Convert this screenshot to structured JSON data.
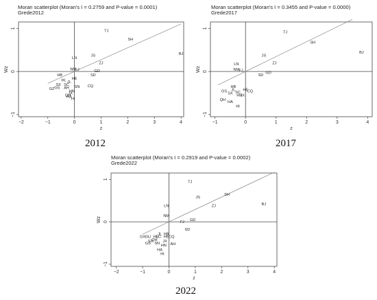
{
  "chart_data": [
    {
      "type": "scatter",
      "title": "Moran scatterplot (Moran's I = 0.2759 and P-value = 0.0001)",
      "subtitle": "Grede2012",
      "xlabel": "z",
      "ylabel": "Wz",
      "caption": "2012",
      "xlim": [
        -2.1,
        4.1
      ],
      "ylim": [
        -1.05,
        1.15
      ],
      "xticks": [
        -2,
        -1,
        0,
        1,
        2,
        3,
        4
      ],
      "yticks": [
        -1,
        0,
        1
      ],
      "fit_line": {
        "slope": 0.2759,
        "x": [
          -1.0,
          4.0
        ]
      },
      "points": [
        {
          "label": "TJ",
          "x": 1.2,
          "y": 0.95
        },
        {
          "label": "SH",
          "x": 2.1,
          "y": 0.75
        },
        {
          "label": "BJ",
          "x": 4.0,
          "y": 0.42
        },
        {
          "label": "JS",
          "x": 0.7,
          "y": 0.38
        },
        {
          "label": "LN",
          "x": 0.0,
          "y": 0.32
        },
        {
          "label": "ZJ",
          "x": 1.0,
          "y": 0.2
        },
        {
          "label": "NM",
          "x": -0.05,
          "y": 0.06
        },
        {
          "label": "FJ",
          "x": 0.1,
          "y": 0.05
        },
        {
          "label": "GD",
          "x": 0.85,
          "y": 0.02
        },
        {
          "label": "SD",
          "x": 0.7,
          "y": -0.08
        },
        {
          "label": "HB",
          "x": -0.55,
          "y": -0.08
        },
        {
          "label": "HE",
          "x": 0.0,
          "y": -0.16
        },
        {
          "label": "HL",
          "x": -0.4,
          "y": -0.2
        },
        {
          "label": "JL",
          "x": -0.2,
          "y": -0.24
        },
        {
          "label": "SC",
          "x": -0.3,
          "y": -0.3
        },
        {
          "label": "SX",
          "x": -0.6,
          "y": -0.3
        },
        {
          "label": "CQ",
          "x": 0.6,
          "y": -0.33
        },
        {
          "label": "SN",
          "x": 0.1,
          "y": -0.35
        },
        {
          "label": "AH",
          "x": -0.3,
          "y": -0.37
        },
        {
          "label": "GS",
          "x": -0.65,
          "y": -0.37
        },
        {
          "label": "GZ",
          "x": -0.85,
          "y": -0.4
        },
        {
          "label": "HN",
          "x": -0.1,
          "y": -0.45
        },
        {
          "label": "JX",
          "x": -0.15,
          "y": -0.5
        },
        {
          "label": "QH",
          "x": -0.25,
          "y": -0.55
        },
        {
          "label": "HA",
          "x": -0.2,
          "y": -0.58
        },
        {
          "label": "HI",
          "x": -0.05,
          "y": -0.63
        }
      ]
    },
    {
      "type": "scatter",
      "title": "Moran scatterplot (Moran's I = 0.3455 and P-value = 0.0000)",
      "subtitle": "Grede2017",
      "xlabel": "z",
      "ylabel": "Wz",
      "caption": "2017",
      "xlim": [
        -1.15,
        4.15
      ],
      "ylim": [
        -1.05,
        1.15
      ],
      "xticks": [
        -1,
        0,
        1,
        2,
        3,
        4
      ],
      "yticks": [
        -1,
        0,
        1
      ],
      "fit_line": {
        "slope": 0.3455,
        "x": [
          -0.9,
          3.5
        ]
      },
      "points": [
        {
          "label": "TJ",
          "x": 1.3,
          "y": 0.92
        },
        {
          "label": "SH",
          "x": 2.2,
          "y": 0.68
        },
        {
          "label": "BJ",
          "x": 3.8,
          "y": 0.45
        },
        {
          "label": "JS",
          "x": 0.6,
          "y": 0.38
        },
        {
          "label": "ZJ",
          "x": 0.95,
          "y": 0.2
        },
        {
          "label": "LN",
          "x": -0.3,
          "y": 0.18
        },
        {
          "label": "NM",
          "x": -0.3,
          "y": 0.05
        },
        {
          "label": "FJ",
          "x": -0.15,
          "y": 0.03
        },
        {
          "label": "GD",
          "x": 0.75,
          "y": -0.02
        },
        {
          "label": "SD",
          "x": 0.5,
          "y": -0.08
        },
        {
          "label": "HB",
          "x": -0.4,
          "y": -0.35
        },
        {
          "label": "HE",
          "x": 0.0,
          "y": -0.42
        },
        {
          "label": "CQ",
          "x": 0.15,
          "y": -0.45
        },
        {
          "label": "JL",
          "x": -0.4,
          "y": -0.42
        },
        {
          "label": "GS",
          "x": -0.7,
          "y": -0.45
        },
        {
          "label": "SX",
          "x": -0.5,
          "y": -0.5
        },
        {
          "label": "SC",
          "x": -0.25,
          "y": -0.48
        },
        {
          "label": "HN",
          "x": -0.2,
          "y": -0.55
        },
        {
          "label": "JX",
          "x": -0.1,
          "y": -0.55
        },
        {
          "label": "QH",
          "x": -0.75,
          "y": -0.65
        },
        {
          "label": "HA",
          "x": -0.5,
          "y": -0.7
        },
        {
          "label": "HI",
          "x": -0.25,
          "y": -0.8
        }
      ]
    },
    {
      "type": "scatter",
      "title": "Moran scatterplot (Moran's I = 0.2919 and P-value = 0.0002)",
      "subtitle": "Grede2022",
      "xlabel": "z",
      "ylabel": "Wz",
      "caption": "2022",
      "xlim": [
        -2.2,
        4.1
      ],
      "ylim": [
        -1.05,
        1.15
      ],
      "xticks": [
        -2,
        -1,
        0,
        1,
        2,
        3,
        4
      ],
      "yticks": [
        -1,
        0,
        1
      ],
      "fit_line": {
        "slope": 0.2919,
        "x": [
          -1.0,
          4.0
        ]
      },
      "points": [
        {
          "label": "TJ",
          "x": 0.8,
          "y": 0.95
        },
        {
          "label": "SH",
          "x": 2.2,
          "y": 0.65
        },
        {
          "label": "JS",
          "x": 1.1,
          "y": 0.58
        },
        {
          "label": "BJ",
          "x": 3.6,
          "y": 0.42
        },
        {
          "label": "LN",
          "x": -0.1,
          "y": 0.38
        },
        {
          "label": "ZJ",
          "x": 1.7,
          "y": 0.38
        },
        {
          "label": "NM",
          "x": -0.1,
          "y": 0.15
        },
        {
          "label": "GD",
          "x": 0.9,
          "y": 0.05
        },
        {
          "label": "FJ",
          "x": 0.5,
          "y": 0.0
        },
        {
          "label": "SD",
          "x": 0.7,
          "y": -0.18
        },
        {
          "label": "JL",
          "x": -0.35,
          "y": -0.28
        },
        {
          "label": "HB",
          "x": -0.1,
          "y": -0.28
        },
        {
          "label": "GX",
          "x": -1.0,
          "y": -0.35
        },
        {
          "label": "GU",
          "x": -0.8,
          "y": -0.35
        },
        {
          "label": "HL",
          "x": -0.5,
          "y": -0.35
        },
        {
          "label": "SC",
          "x": -0.4,
          "y": -0.35
        },
        {
          "label": "HE",
          "x": -0.1,
          "y": -0.35
        },
        {
          "label": "CQ",
          "x": 0.1,
          "y": -0.35
        },
        {
          "label": "QH",
          "x": -0.55,
          "y": -0.42
        },
        {
          "label": "SX",
          "x": -0.7,
          "y": -0.45
        },
        {
          "label": "JX",
          "x": -0.15,
          "y": -0.45
        },
        {
          "label": "GS",
          "x": -0.8,
          "y": -0.5
        },
        {
          "label": "SN",
          "x": -0.45,
          "y": -0.5
        },
        {
          "label": "AH",
          "x": 0.15,
          "y": -0.52
        },
        {
          "label": "HN",
          "x": -0.2,
          "y": -0.55
        },
        {
          "label": "HA",
          "x": -0.35,
          "y": -0.65
        },
        {
          "label": "HI",
          "x": -0.25,
          "y": -0.75
        }
      ]
    }
  ]
}
